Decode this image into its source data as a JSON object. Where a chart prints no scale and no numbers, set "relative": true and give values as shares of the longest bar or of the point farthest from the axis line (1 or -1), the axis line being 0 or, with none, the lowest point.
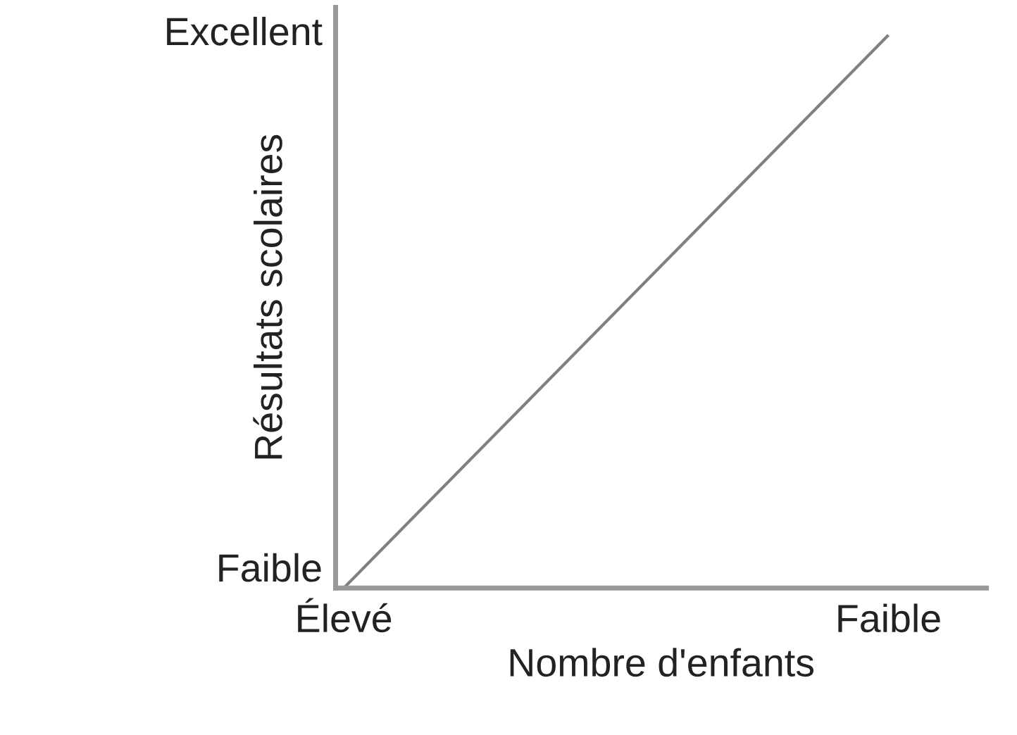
{
  "chart_data": {
    "type": "line",
    "xlabel": "Nombre d'enfants",
    "ylabel": "Résultats scolaires",
    "categories": [
      "Élevé",
      "Faible"
    ],
    "series": [
      {
        "color": "#808080",
        "values": [
          0,
          1
        ]
      }
    ],
    "relative": true,
    "annotations": [
      "Faible",
      "Excellent"
    ],
    "legend": false,
    "marker": "none",
    "line_style": "solid"
  }
}
